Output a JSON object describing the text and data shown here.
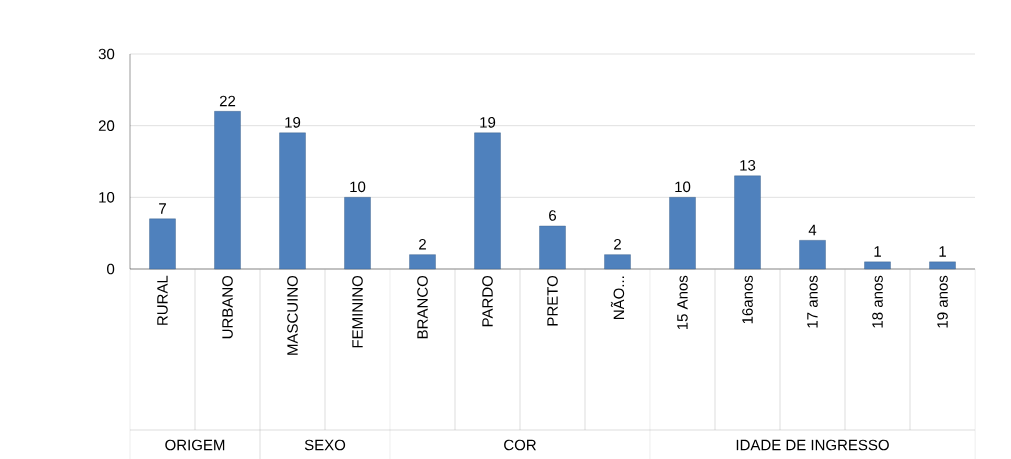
{
  "chart_data": {
    "type": "bar",
    "categories": [
      "RURAL",
      "URBANO",
      "MASCUINO",
      "FEMININO",
      "BRANCO",
      "PARDO",
      "PRETO",
      "NÃO...",
      "15 Anos",
      "16anos",
      "17 anos",
      "18 anos",
      "19 anos"
    ],
    "values": [
      7,
      22,
      19,
      10,
      2,
      19,
      6,
      2,
      10,
      13,
      4,
      1,
      1
    ],
    "color": "#4f81bd",
    "ylim": [
      0,
      30
    ],
    "yticks": [
      0,
      10,
      20,
      30
    ],
    "grid": "y",
    "data_labels": true,
    "annotations": [
      "ORIGEM",
      "SEXO",
      "COR",
      "IDADE DE INGRESSO"
    ]
  }
}
